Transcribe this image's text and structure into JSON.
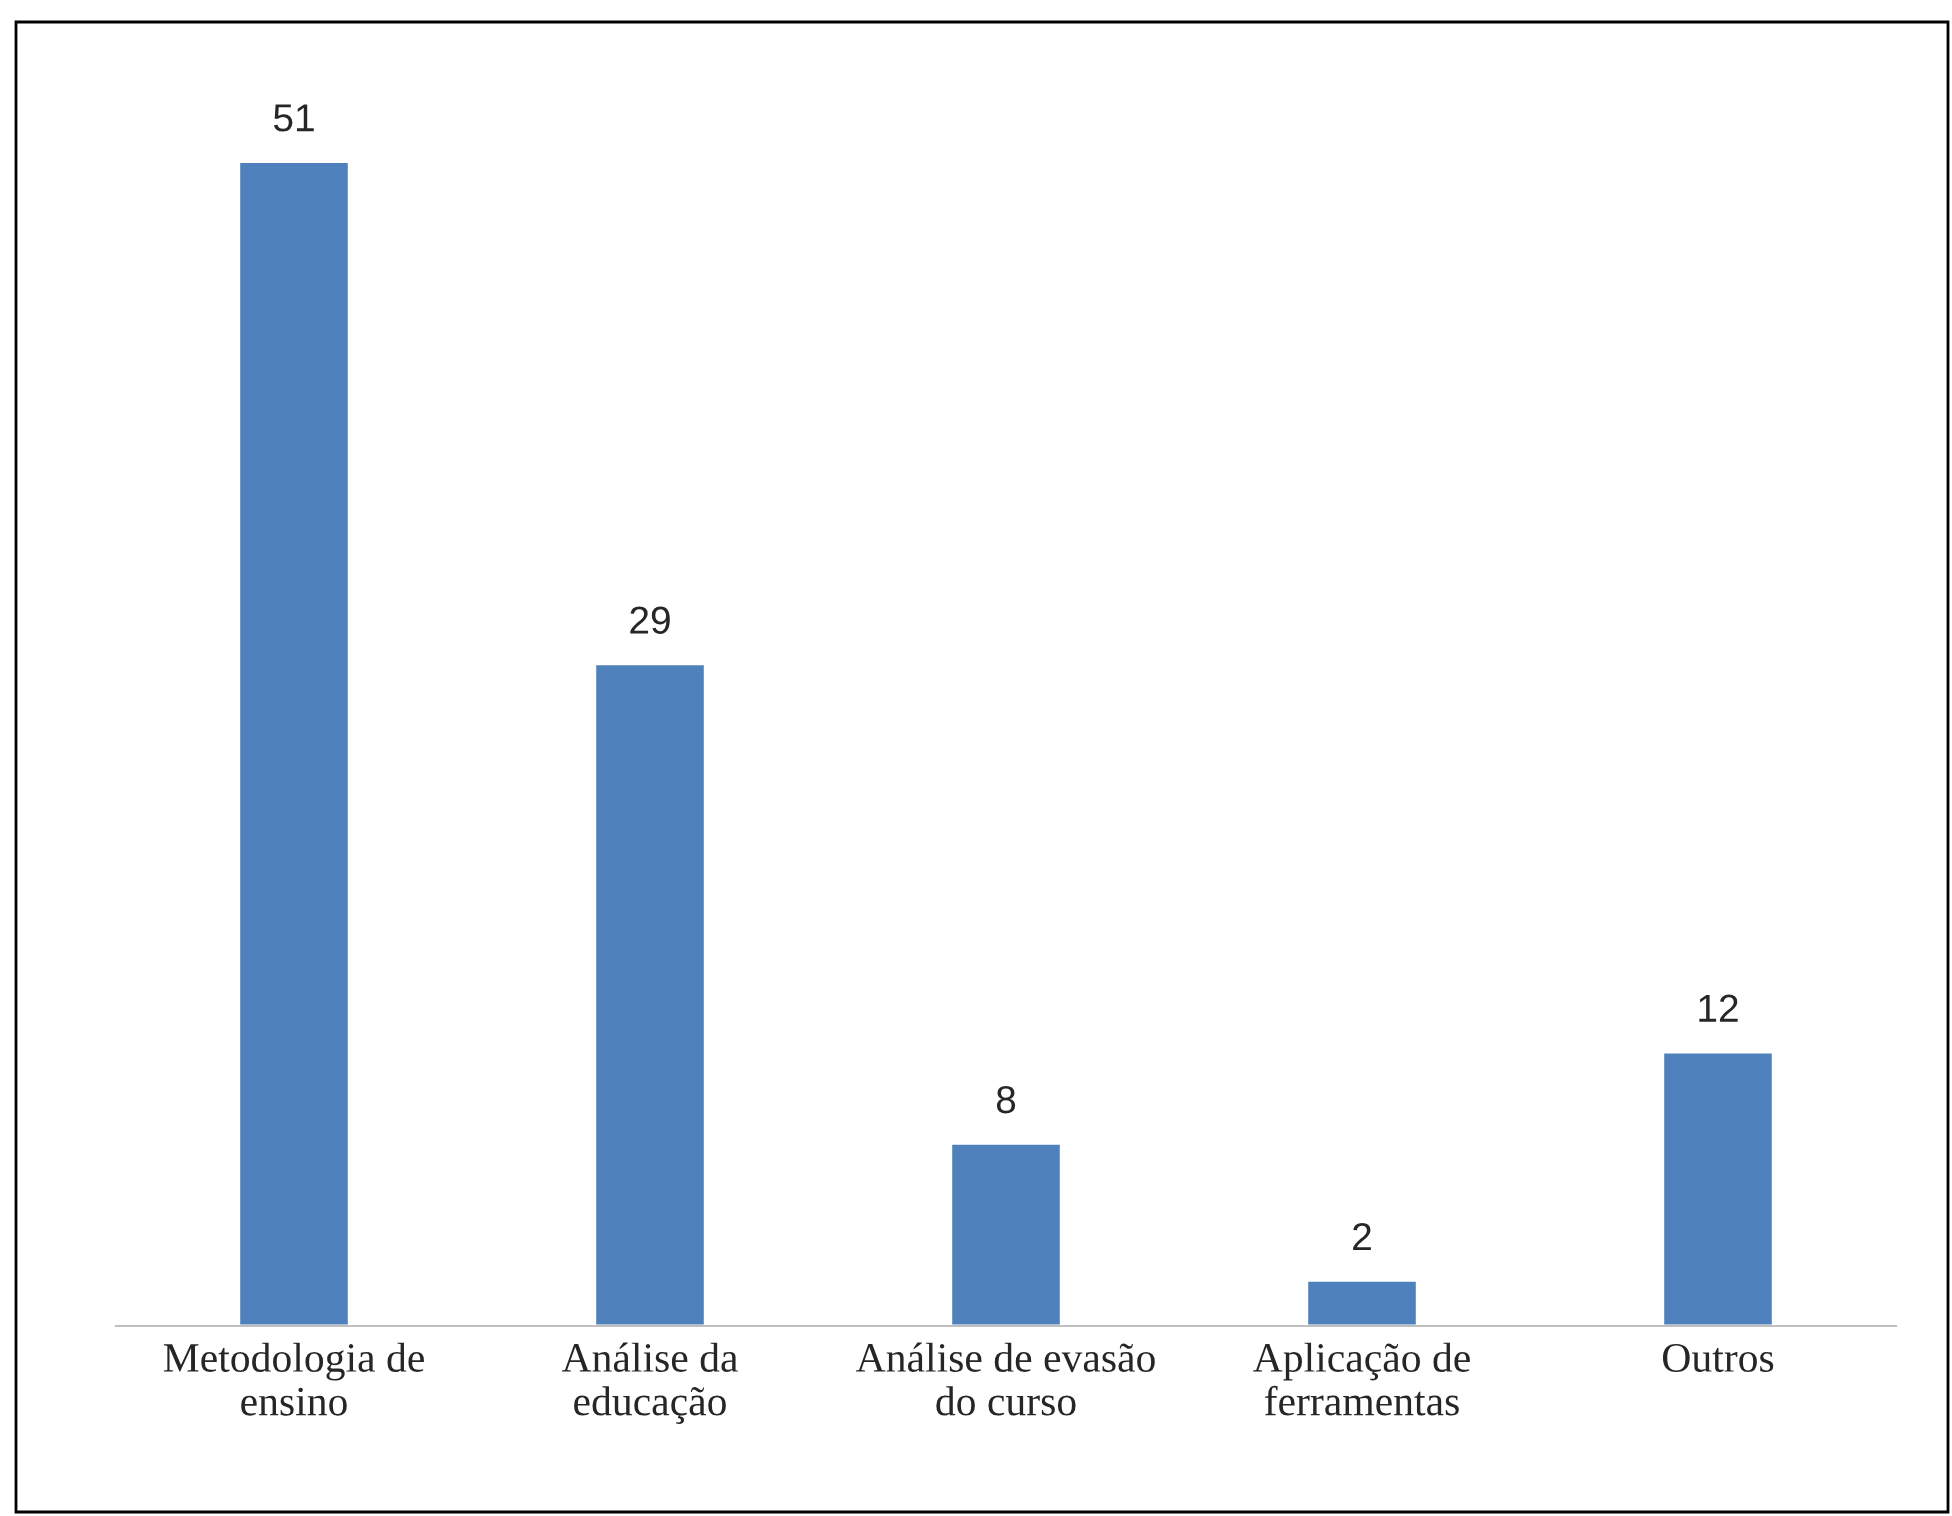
{
  "chart_data": {
    "type": "bar",
    "categories": [
      "Metodologia de\nensino",
      "Análise da\neducação",
      "Análise de evasão\ndo curso",
      "Aplicação de\nferramentas",
      "Outros"
    ],
    "values": [
      51,
      29,
      8,
      2,
      12
    ],
    "color": "#4f81bd",
    "data_labels": true,
    "grid": false,
    "legend": false
  }
}
